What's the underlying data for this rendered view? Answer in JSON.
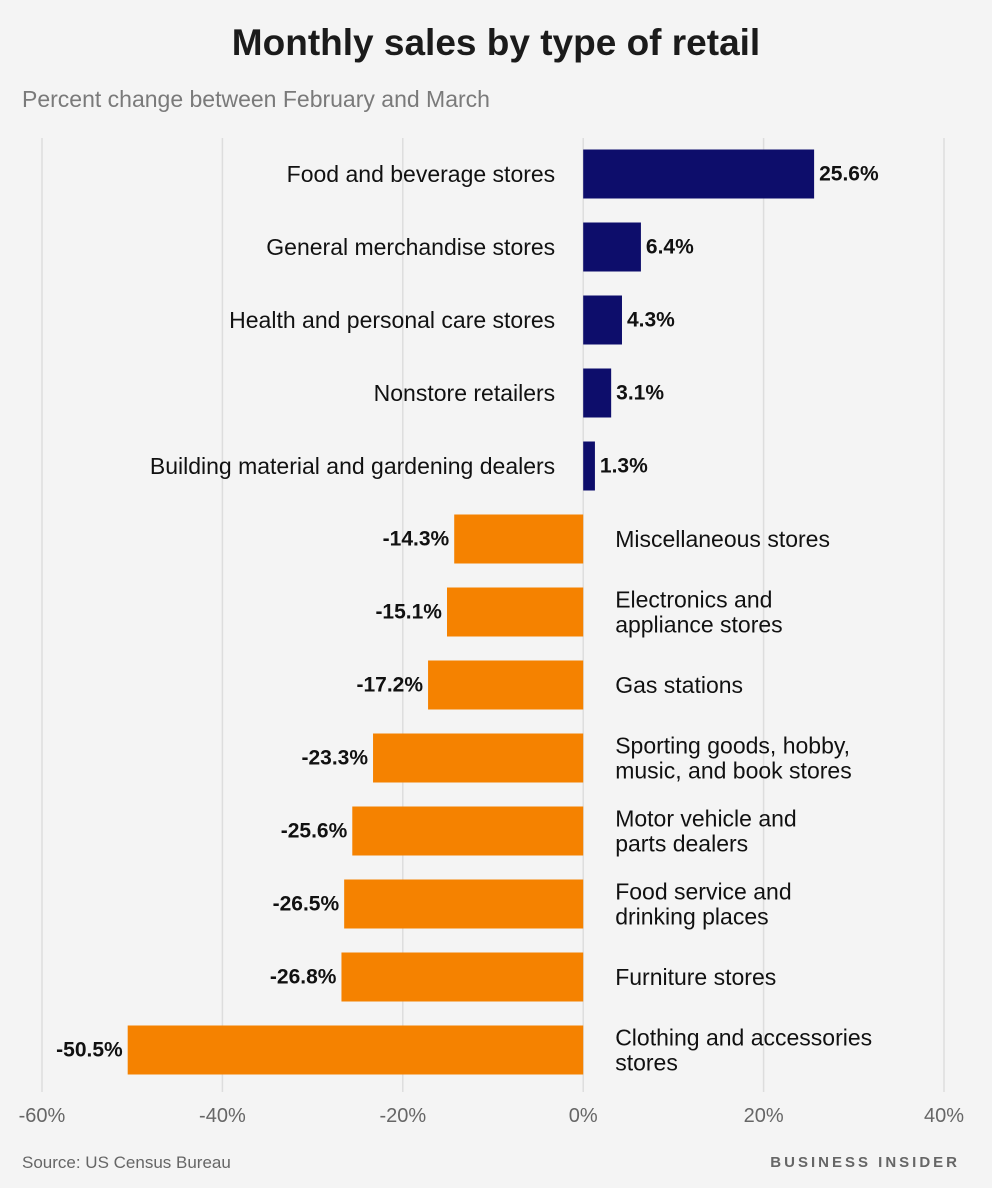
{
  "title": "Monthly sales by type of retail",
  "subtitle": "Percent change between February and March",
  "source": "Source: US Census Bureau",
  "brand": "BUSINESS INSIDER",
  "colors": {
    "positive": "#0d0d6b",
    "negative": "#f58200",
    "grid": "#dddddd"
  },
  "chart_data": {
    "type": "bar",
    "orientation": "horizontal",
    "title": "Monthly sales by type of retail",
    "subtitle": "Percent change between February and March",
    "xlim": [
      -60,
      40
    ],
    "ticks": [
      "-60%",
      "-40%",
      "-20%",
      "0%",
      "20%",
      "40%"
    ],
    "tick_values": [
      -60,
      -40,
      -20,
      0,
      20,
      40
    ],
    "grid": true,
    "categories": [
      [
        "Food and beverage stores"
      ],
      [
        "General merchandise stores"
      ],
      [
        "Health and personal care stores"
      ],
      [
        "Nonstore retailers"
      ],
      [
        "Building material and gardening dealers"
      ],
      [
        "Miscellaneous stores"
      ],
      [
        "Electronics and",
        "appliance stores"
      ],
      [
        "Gas stations"
      ],
      [
        "Sporting goods, hobby,",
        "music, and book stores"
      ],
      [
        "Motor vehicle and",
        "parts dealers"
      ],
      [
        "Food service and",
        "drinking places"
      ],
      [
        "Furniture stores"
      ],
      [
        "Clothing and accessories",
        "stores"
      ]
    ],
    "values": [
      25.6,
      6.4,
      4.3,
      3.1,
      1.3,
      -14.3,
      -15.1,
      -17.2,
      -23.3,
      -25.6,
      -26.5,
      -26.8,
      -50.5
    ],
    "labels": [
      "25.6%",
      "6.4%",
      "4.3%",
      "3.1%",
      "1.3%",
      "-14.3%",
      "-15.1%",
      "-17.2%",
      "-23.3%",
      "-25.6%",
      "-26.5%",
      "-26.8%",
      "-50.5%"
    ]
  }
}
